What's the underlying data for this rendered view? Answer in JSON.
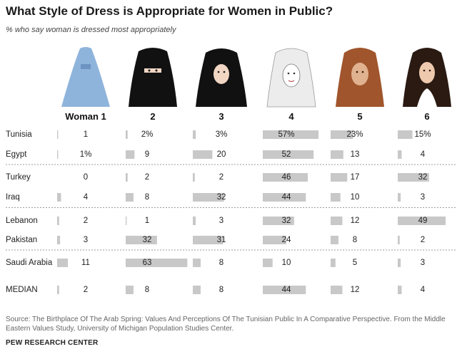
{
  "title": "What Style of Dress is Appropriate for Women in Public?",
  "subtitle": "% who say woman is dressed most appropriately",
  "source": "Source: The Birthplace Of The Arab Spring: Values And Perceptions Of The Tunisian Public In A Comparative Perspective. From the Middle Eastern Values Study, University of Michigan Population Studies Center.",
  "credit": "PEW RESEARCH CENTER",
  "colors": {
    "bar": "#c8c8c8",
    "skin": "#f1d6c4",
    "black": "#111111",
    "burqa": "#8fb4dc",
    "headscarf_white": "#ececec",
    "headscarf_brown": "#a0552c",
    "hair": "#2a1a12"
  },
  "figures": [
    {
      "style": "burqa"
    },
    {
      "style": "niqab"
    },
    {
      "style": "chador"
    },
    {
      "style": "white-hijab"
    },
    {
      "style": "loose-headscarf"
    },
    {
      "style": "uncovered"
    }
  ],
  "chart_data": {
    "type": "table",
    "columns": [
      "Woman 1",
      "2",
      "3",
      "4",
      "5",
      "6"
    ],
    "rows": [
      {
        "label": "Tunisia",
        "values": [
          1,
          2,
          3,
          57,
          23,
          15
        ],
        "display": [
          "1",
          "2%",
          "3%",
          "57%",
          "23%",
          "15%"
        ]
      },
      {
        "label": "Egypt",
        "values": [
          1,
          9,
          20,
          52,
          13,
          4
        ],
        "display": [
          "1%",
          "9",
          "20",
          "52",
          "13",
          "4"
        ]
      },
      {
        "label": "Turkey",
        "values": [
          0,
          2,
          2,
          46,
          17,
          32
        ],
        "display": [
          "0",
          "2",
          "2",
          "46",
          "17",
          "32"
        ]
      },
      {
        "label": "Iraq",
        "values": [
          4,
          8,
          32,
          44,
          10,
          3
        ],
        "display": [
          "4",
          "8",
          "32",
          "44",
          "10",
          "3"
        ]
      },
      {
        "label": "Lebanon",
        "values": [
          2,
          1,
          3,
          32,
          12,
          49
        ],
        "display": [
          "2",
          "1",
          "3",
          "32",
          "12",
          "49"
        ]
      },
      {
        "label": "Pakistan",
        "values": [
          3,
          32,
          31,
          24,
          8,
          2
        ],
        "display": [
          "3",
          "32",
          "31",
          "24",
          "8",
          "2"
        ]
      },
      {
        "label": "Saudi Arabia",
        "values": [
          11,
          63,
          8,
          10,
          5,
          3
        ],
        "display": [
          "11",
          "63",
          "8",
          "10",
          "5",
          "3"
        ]
      },
      {
        "label": "MEDIAN",
        "values": [
          2,
          8,
          8,
          44,
          12,
          4
        ],
        "display": [
          "2",
          "8",
          "8",
          "44",
          "12",
          "4"
        ]
      }
    ],
    "separators_after_rows": [
      1,
      3,
      5
    ],
    "value_range": [
      0,
      63
    ]
  }
}
